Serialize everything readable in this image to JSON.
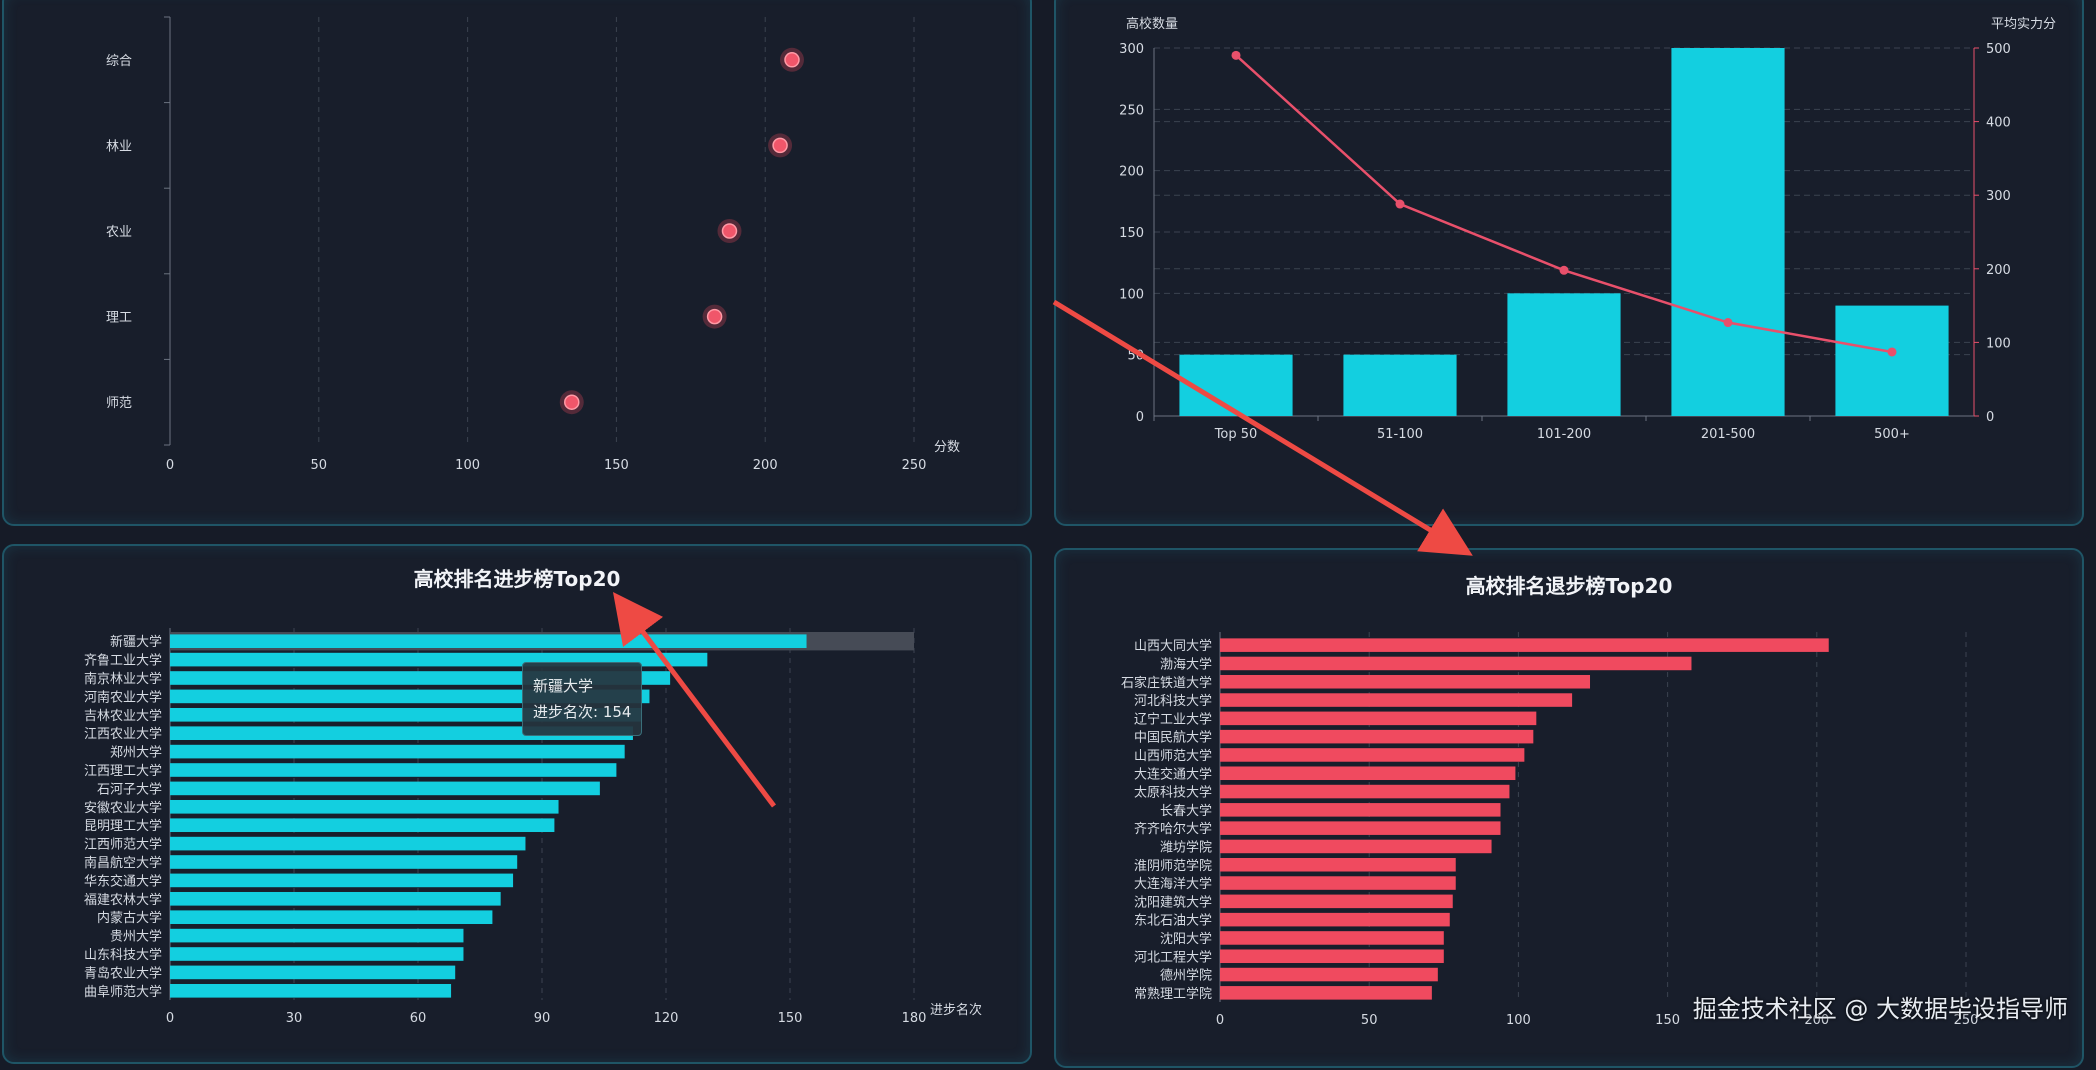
{
  "watermark": "掘金技术社区 @ 大数据毕设指导师",
  "colors": {
    "cyan": "#13cfe0",
    "red": "#f04a5f",
    "line": "#e8506b",
    "highlight_bg": "#464b56",
    "annotation_arrow": "#ee4a44"
  },
  "tooltip": {
    "name": "新疆大学",
    "label": "进步名次",
    "value": "154"
  },
  "chart_data": [
    {
      "type": "scatter",
      "categories": [
        "综合",
        "林业",
        "农业",
        "理工",
        "师范"
      ],
      "values": [
        209,
        205,
        188,
        183,
        135
      ],
      "xlabel": "分数",
      "xlim": [
        0,
        250
      ],
      "xticks": [
        "0",
        "50",
        "100",
        "150",
        "200",
        "250"
      ],
      "grid": "vertical dashed"
    },
    {
      "type": "bar",
      "categories": [
        "Top 50",
        "51-100",
        "101-200",
        "201-500",
        "500+"
      ],
      "series": [
        {
          "name": "高校数量",
          "values": [
            50,
            50,
            100,
            300,
            90
          ],
          "axis": "left"
        },
        {
          "name": "平均实力分",
          "values": [
            490,
            288,
            198,
            127,
            87
          ],
          "axis": "right",
          "type": "line"
        }
      ],
      "ylabel": "高校数量",
      "ylabel_right": "平均实力分",
      "ylim": [
        0,
        300
      ],
      "ylim_right": [
        0,
        500
      ],
      "yticks": [
        "0",
        "50",
        "100",
        "150",
        "200",
        "250",
        "300"
      ],
      "yticks_right": [
        "0",
        "100",
        "200",
        "300",
        "400",
        "500"
      ],
      "grid": "horizontal dashed"
    },
    {
      "type": "bar",
      "orientation": "horizontal",
      "title": "高校排名进步榜Top20",
      "categories": [
        "新疆大学",
        "齐鲁工业大学",
        "南京林业大学",
        "河南农业大学",
        "吉林农业大学",
        "江西农业大学",
        "郑州大学",
        "江西理工大学",
        "石河子大学",
        "安徽农业大学",
        "昆明理工大学",
        "江西师范大学",
        "南昌航空大学",
        "华东交通大学",
        "福建农林大学",
        "内蒙古大学",
        "贵州大学",
        "山东科技大学",
        "青岛农业大学",
        "曲阜师范大学"
      ],
      "values": [
        154,
        130,
        121,
        116,
        114,
        112,
        110,
        108,
        104,
        94,
        93,
        86,
        84,
        83,
        80,
        78,
        71,
        71,
        69,
        68
      ],
      "highlighted": "新疆大学",
      "xlabel": "进步名次",
      "xlim": [
        0,
        180
      ],
      "xticks": [
        "0",
        "30",
        "60",
        "90",
        "120",
        "150",
        "180"
      ]
    },
    {
      "type": "bar",
      "orientation": "horizontal",
      "title": "高校排名退步榜Top20",
      "categories": [
        "山西大同大学",
        "渤海大学",
        "石家庄铁道大学",
        "河北科技大学",
        "辽宁工业大学",
        "中国民航大学",
        "山西师范大学",
        "大连交通大学",
        "太原科技大学",
        "长春大学",
        "齐齐哈尔大学",
        "潍坊学院",
        "淮阴师范学院",
        "大连海洋大学",
        "沈阳建筑大学",
        "东北石油大学",
        "沈阳大学",
        "河北工程大学",
        "德州学院",
        "常熟理工学院"
      ],
      "values": [
        204,
        158,
        124,
        118,
        106,
        105,
        102,
        99,
        97,
        94,
        94,
        91,
        79,
        79,
        78,
        77,
        75,
        75,
        73,
        71
      ],
      "xlim": [
        0,
        250
      ],
      "xticks": [
        "0",
        "50",
        "100",
        "150",
        "200",
        "250"
      ]
    }
  ]
}
